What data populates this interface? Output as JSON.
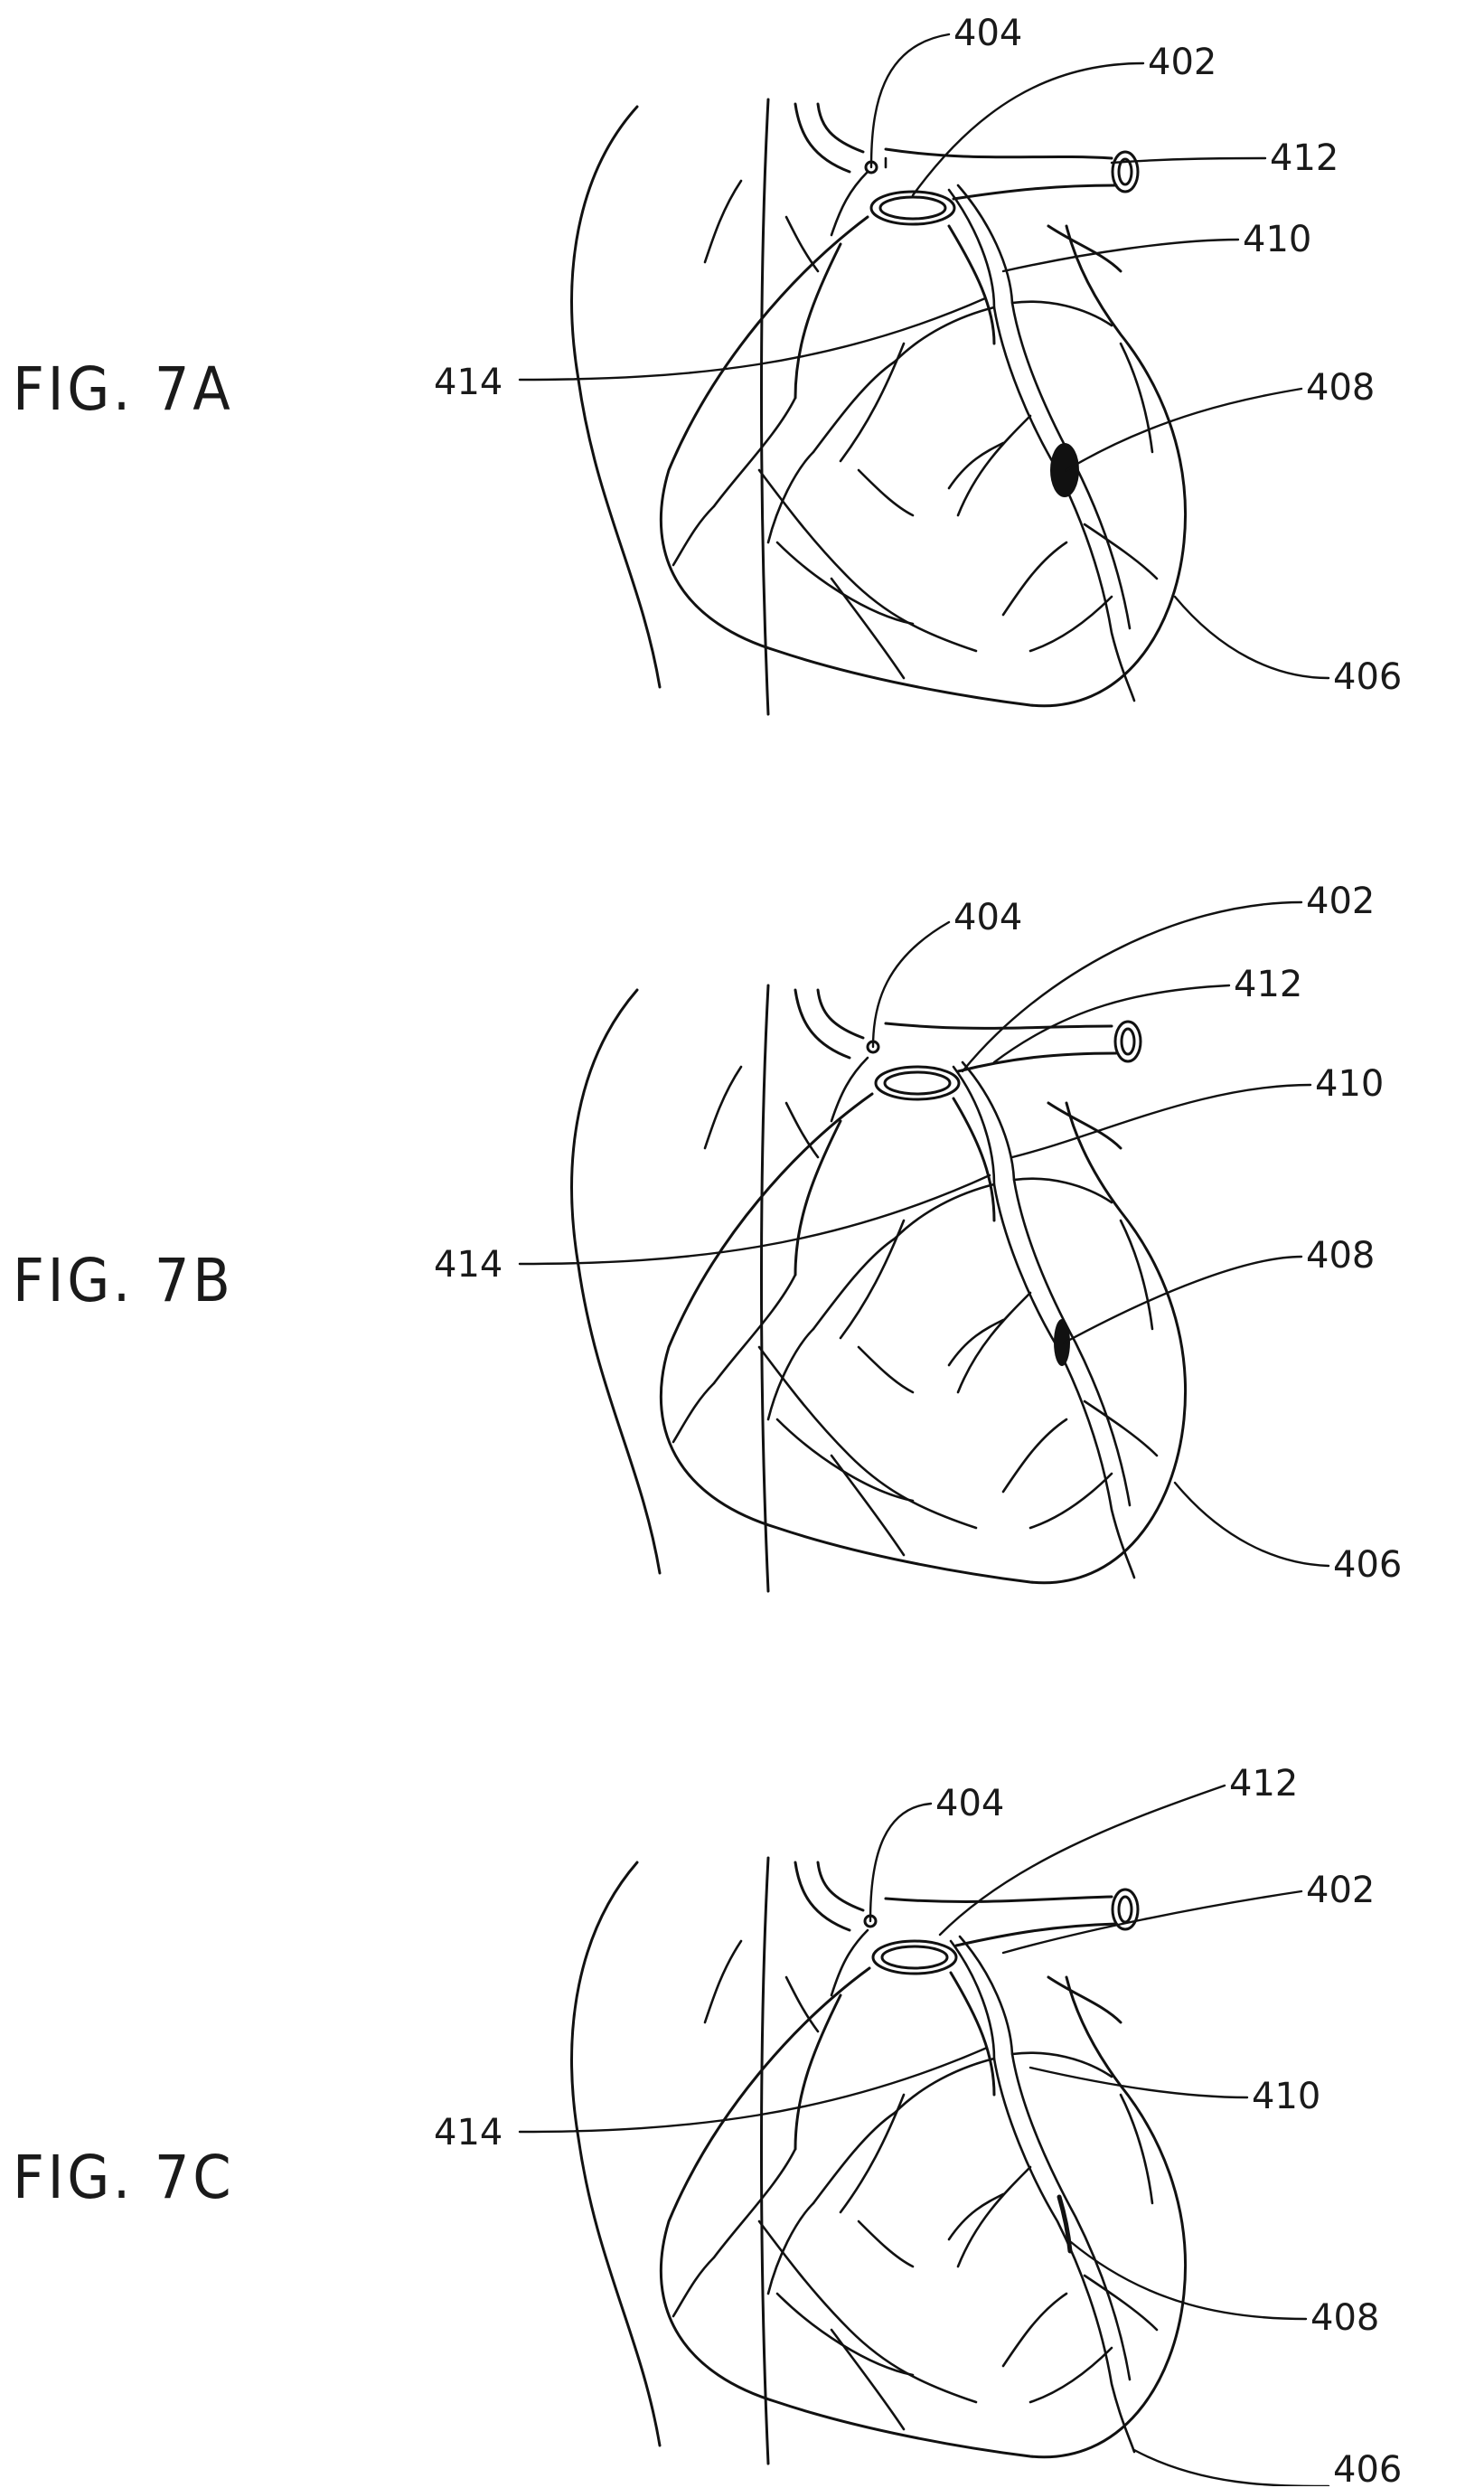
{
  "figures": [
    {
      "id": "7A",
      "label": "FIG. 7A",
      "refs": {
        "r404": "404",
        "r402": "402",
        "r412": "412",
        "r410": "410",
        "r414": "414",
        "r408": "408",
        "r406": "406"
      }
    },
    {
      "id": "7B",
      "label": "FIG. 7B",
      "refs": {
        "r402": "402",
        "r404": "404",
        "r412": "412",
        "r410": "410",
        "r414": "414",
        "r408": "408",
        "r406": "406"
      }
    },
    {
      "id": "7C",
      "label": "FIG. 7C",
      "refs": {
        "r404": "404",
        "r412": "412",
        "r402": "402",
        "r414": "414",
        "r410": "410",
        "r408": "408",
        "r406": "406"
      }
    }
  ]
}
